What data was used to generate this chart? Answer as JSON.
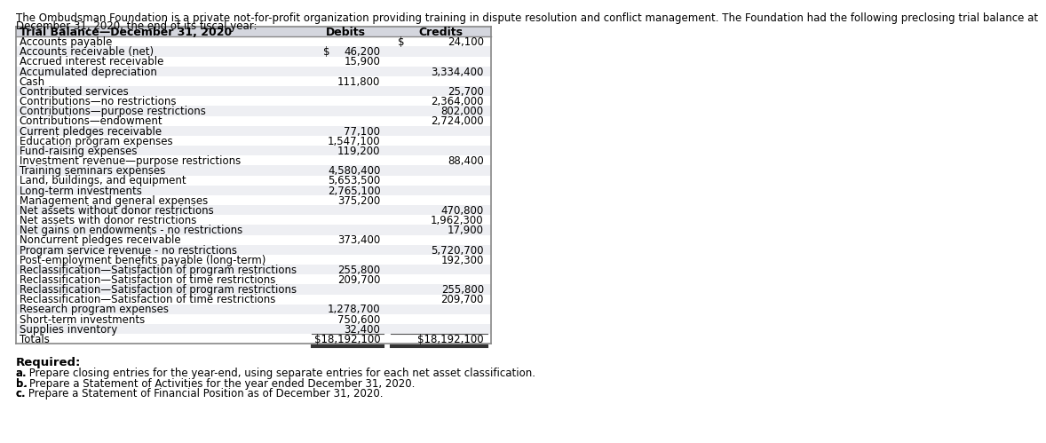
{
  "intro_text": "The Ombudsman Foundation is a private not-for-profit organization providing training in dispute resolution and conflict management. The Foundation had the following preclosing trial balance at\nDecember 31, 2020, the end of its fiscal year:",
  "table_header": "Trial Balance—December 31, 2020",
  "col_debits": "Debits",
  "col_credits": "Credits",
  "rows": [
    {
      "label": "Accounts payable",
      "debit": "",
      "debit_dollar": false,
      "credit": "24,100",
      "credit_dollar": true
    },
    {
      "label": "Accounts receivable (net)",
      "debit": "46,200",
      "debit_dollar": true,
      "credit": "",
      "credit_dollar": false
    },
    {
      "label": "Accrued interest receivable",
      "debit": "15,900",
      "debit_dollar": false,
      "credit": "",
      "credit_dollar": false
    },
    {
      "label": "Accumulated depreciation",
      "debit": "",
      "debit_dollar": false,
      "credit": "3,334,400",
      "credit_dollar": false
    },
    {
      "label": "Cash",
      "debit": "111,800",
      "debit_dollar": false,
      "credit": "",
      "credit_dollar": false
    },
    {
      "label": "Contributed services",
      "debit": "",
      "debit_dollar": false,
      "credit": "25,700",
      "credit_dollar": false
    },
    {
      "label": "Contributions—no restrictions",
      "debit": "",
      "debit_dollar": false,
      "credit": "2,364,000",
      "credit_dollar": false
    },
    {
      "label": "Contributions—purpose restrictions",
      "debit": "",
      "debit_dollar": false,
      "credit": "802,000",
      "credit_dollar": false
    },
    {
      "label": "Contributions—endowment",
      "debit": "",
      "debit_dollar": false,
      "credit": "2,724,000",
      "credit_dollar": false
    },
    {
      "label": "Current pledges receivable",
      "debit": "77,100",
      "debit_dollar": false,
      "credit": "",
      "credit_dollar": false
    },
    {
      "label": "Education program expenses",
      "debit": "1,547,100",
      "debit_dollar": false,
      "credit": "",
      "credit_dollar": false
    },
    {
      "label": "Fund-raising expenses",
      "debit": "119,200",
      "debit_dollar": false,
      "credit": "",
      "credit_dollar": false
    },
    {
      "label": "Investment revenue—purpose restrictions",
      "debit": "",
      "debit_dollar": false,
      "credit": "88,400",
      "credit_dollar": false
    },
    {
      "label": "Training seminars expenses",
      "debit": "4,580,400",
      "debit_dollar": false,
      "credit": "",
      "credit_dollar": false
    },
    {
      "label": "Land, buildings, and equipment",
      "debit": "5,653,500",
      "debit_dollar": false,
      "credit": "",
      "credit_dollar": false
    },
    {
      "label": "Long-term investments",
      "debit": "2,765,100",
      "debit_dollar": false,
      "credit": "",
      "credit_dollar": false
    },
    {
      "label": "Management and general expenses",
      "debit": "375,200",
      "debit_dollar": false,
      "credit": "",
      "credit_dollar": false
    },
    {
      "label": "Net assets without donor restrictions",
      "debit": "",
      "debit_dollar": false,
      "credit": "470,800",
      "credit_dollar": false
    },
    {
      "label": "Net assets with donor restrictions",
      "debit": "",
      "debit_dollar": false,
      "credit": "1,962,300",
      "credit_dollar": false
    },
    {
      "label": "Net gains on endowments - no restrictions",
      "debit": "",
      "debit_dollar": false,
      "credit": "17,900",
      "credit_dollar": false
    },
    {
      "label": "Noncurrent pledges receivable",
      "debit": "373,400",
      "debit_dollar": false,
      "credit": "",
      "credit_dollar": false
    },
    {
      "label": "Program service revenue - no restrictions",
      "debit": "",
      "debit_dollar": false,
      "credit": "5,720,700",
      "credit_dollar": false
    },
    {
      "label": "Post-employment benefits payable (long-term)",
      "debit": "",
      "debit_dollar": false,
      "credit": "192,300",
      "credit_dollar": false
    },
    {
      "label": "Reclassification—Satisfaction of program restrictions",
      "debit": "255,800",
      "debit_dollar": false,
      "credit": "",
      "credit_dollar": false
    },
    {
      "label": "Reclassification—Satisfaction of time restrictions",
      "debit": "209,700",
      "debit_dollar": false,
      "credit": "",
      "credit_dollar": false
    },
    {
      "label": "Reclassification—Satisfaction of program restrictions",
      "debit": "",
      "debit_dollar": false,
      "credit": "255,800",
      "credit_dollar": false
    },
    {
      "label": "Reclassification—Satisfaction of time restrictions",
      "debit": "",
      "debit_dollar": false,
      "credit": "209,700",
      "credit_dollar": false
    },
    {
      "label": "Research program expenses",
      "debit": "1,278,700",
      "debit_dollar": false,
      "credit": "",
      "credit_dollar": false
    },
    {
      "label": "Short-term investments",
      "debit": "750,600",
      "debit_dollar": false,
      "credit": "",
      "credit_dollar": false
    },
    {
      "label": "Supplies inventory",
      "debit": "32,400",
      "debit_dollar": false,
      "credit": "",
      "credit_dollar": false
    },
    {
      "label": "Totals",
      "debit": "$18,192,100",
      "debit_dollar": false,
      "credit": "$18,192,100",
      "credit_dollar": false
    }
  ],
  "required_header": "Required:",
  "required_items": [
    "a. Prepare closing entries for the year-end, using separate entries for each net asset classification.",
    "b. Prepare a Statement of Activities for the year ended December 31, 2020.",
    "c. Prepare a Statement of Financial Position as of December 31, 2020."
  ],
  "bg_color": "#ffffff",
  "row_alt_color": "#eeeff3",
  "row_even_color": "#ffffff",
  "header_bg": "#d4d6de",
  "table_border_color": "#888888",
  "text_color": "#000000",
  "font_size": 8.5,
  "intro_font_size": 8.5,
  "header_font_size": 9.0
}
